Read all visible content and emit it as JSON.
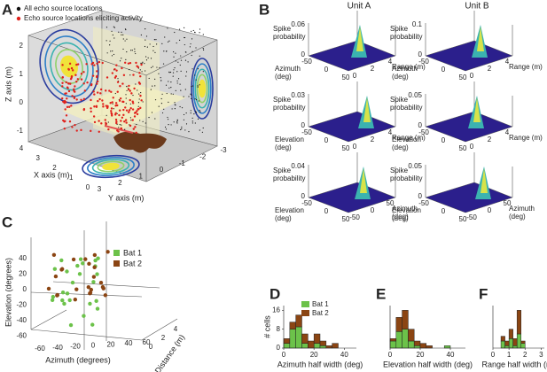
{
  "panel_a": {
    "label": "A",
    "legend": [
      "All echo source locations",
      "Echo source locations eliciting activity"
    ],
    "legend_colors": [
      "#111111",
      "#e0201b"
    ],
    "z_axis": "Z axis (m)",
    "x_axis": "X axis (m)",
    "y_axis": "Y axis (m)",
    "z_ticks": [
      2,
      1,
      0,
      -1
    ],
    "x_ticks": [
      4,
      3,
      2,
      1,
      0
    ],
    "y_ticks": [
      3,
      2,
      1,
      0,
      -1,
      -2,
      -3
    ]
  },
  "panel_b": {
    "label": "B",
    "columns": [
      "Unit A",
      "Unit B"
    ],
    "z_label": [
      "Spike",
      "probability"
    ],
    "plots": [
      {
        "z_ticks": [
          0.06,
          0
        ],
        "x_label": [
          "Azimuth",
          "(deg)"
        ],
        "x_ticks": [
          -50,
          0,
          50
        ],
        "y_label": "Range (m)",
        "y_ticks": [
          0,
          2,
          4
        ]
      },
      {
        "z_ticks": [
          0.1,
          0
        ],
        "x_label": [
          "Azimuth",
          "(deg)"
        ],
        "x_ticks": [
          -50,
          0,
          50
        ],
        "y_label": "Range (m)",
        "y_ticks": [
          0,
          2,
          4
        ]
      },
      {
        "z_ticks": [
          0.03,
          0
        ],
        "x_label": [
          "Elevation",
          "(deg)"
        ],
        "x_ticks": [
          -50,
          0,
          50
        ],
        "y_label": "Range (m)",
        "y_ticks": [
          0,
          2,
          4
        ]
      },
      {
        "z_ticks": [
          0.05,
          0
        ],
        "x_label": [
          "Elevation",
          "(deg)"
        ],
        "x_ticks": [
          -50,
          0,
          50
        ],
        "y_label": "Range (m)",
        "y_ticks": [
          0,
          2,
          4
        ]
      },
      {
        "z_ticks": [
          0.04,
          0
        ],
        "x_label": [
          "Elevation",
          "(deg)"
        ],
        "x_ticks": [
          -50,
          0,
          50
        ],
        "y_label": [
          "Azimuth",
          "(deg)"
        ],
        "y_ticks": [
          -50,
          0,
          50
        ]
      },
      {
        "z_ticks": [
          0.05,
          0
        ],
        "x_label": [
          "Elevation",
          "(deg)"
        ],
        "x_ticks": [
          -50,
          0,
          50
        ],
        "y_label": [
          "Azimuth",
          "(deg)"
        ],
        "y_ticks": [
          -50,
          0,
          50
        ]
      }
    ]
  },
  "panel_c": {
    "label": "C",
    "legend": [
      "Bat 1",
      "Bat 2"
    ],
    "legend_colors": [
      "#6cc24a",
      "#8b4513"
    ],
    "elevation_label": "Elevation (degrees)",
    "elevation_ticks": [
      40,
      20,
      0,
      -20,
      -40,
      -60
    ],
    "azimuth_label": "Azimuth (degrees)",
    "azimuth_ticks": [
      -60,
      -40,
      -20,
      0,
      20,
      40,
      60
    ],
    "distance_label": "Distance (m)",
    "distance_ticks": [
      0,
      2,
      4
    ]
  },
  "chart_data": [
    {
      "type": "histogram",
      "label": "D",
      "ylabel": "# cells",
      "xlabel": "Azimuth half width (deg)",
      "xlim": [
        0,
        48
      ],
      "xticks": [
        0,
        20,
        40
      ],
      "ylim": [
        0,
        18
      ],
      "yticks": [
        0,
        8,
        16
      ],
      "bins": [
        0,
        4,
        8,
        12,
        16,
        20,
        24,
        28,
        32,
        36
      ],
      "series": [
        {
          "name": "Bat 1",
          "color": "#6cc24a",
          "values": [
            2,
            8,
            9,
            2,
            0,
            2,
            1,
            0,
            0
          ]
        },
        {
          "name": "Bat 2",
          "color": "#8b4513",
          "values": [
            2,
            3,
            5,
            4,
            3,
            4,
            2,
            1,
            2
          ]
        }
      ]
    },
    {
      "type": "histogram",
      "label": "E",
      "xlabel": "Elevation half width (deg)",
      "xlim": [
        0,
        50
      ],
      "xticks": [
        0,
        20,
        40
      ],
      "ylim": [
        0,
        18
      ],
      "bins": [
        0,
        4,
        8,
        12,
        16,
        20,
        24,
        28,
        32,
        36,
        40,
        44
      ],
      "series": [
        {
          "color": "#6cc24a",
          "values": [
            3,
            7,
            8,
            3,
            1,
            0,
            0,
            0,
            0,
            1,
            0
          ]
        },
        {
          "color": "#8b4513",
          "values": [
            1,
            6,
            8,
            5,
            2,
            2,
            1,
            0,
            0,
            0,
            0
          ]
        }
      ]
    },
    {
      "type": "histogram",
      "label": "F",
      "xlabel": "Range half width (m)",
      "xlim": [
        0,
        3.2
      ],
      "xticks": [
        0,
        1,
        2,
        3
      ],
      "ylim": [
        0,
        18
      ],
      "bins": [
        0,
        0.25,
        0.5,
        0.75,
        1,
        1.25,
        1.5,
        1.75,
        2,
        2.25,
        2.5,
        2.75,
        3
      ],
      "series": [
        {
          "color": "#6cc24a",
          "values": [
            0,
            0,
            3,
            1,
            4,
            1,
            6,
            2,
            0,
            0,
            0,
            0
          ]
        },
        {
          "color": "#8b4513",
          "values": [
            0,
            0,
            2,
            2,
            4,
            3,
            10,
            1,
            0,
            0,
            0,
            0
          ]
        }
      ]
    }
  ]
}
